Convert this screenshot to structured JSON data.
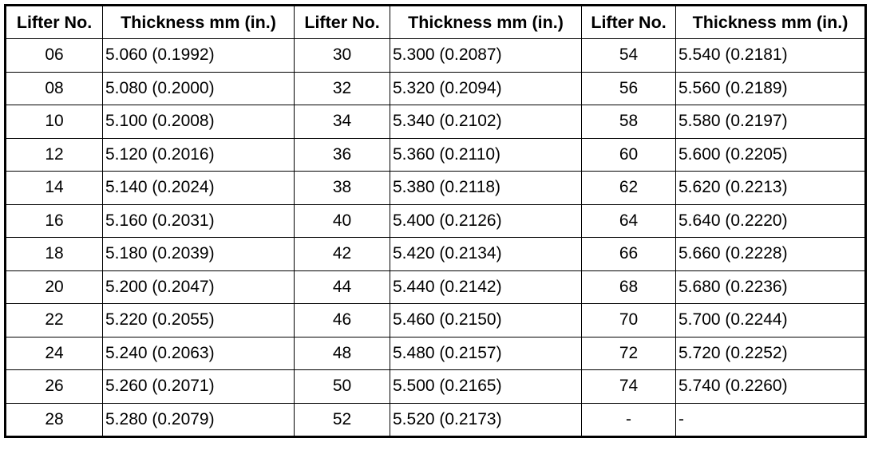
{
  "table": {
    "header": [
      "Lifter No.",
      "Thickness mm (in.)",
      "Lifter No.",
      "Thickness mm (in.)",
      "Lifter No.",
      "Thickness mm (in.)"
    ],
    "rows": [
      [
        "06",
        "5.060 (0.1992)",
        "30",
        "5.300 (0.2087)",
        "54",
        "5.540 (0.2181)"
      ],
      [
        "08",
        "5.080 (0.2000)",
        "32",
        "5.320 (0.2094)",
        "56",
        "5.560 (0.2189)"
      ],
      [
        "10",
        "5.100 (0.2008)",
        "34",
        "5.340 (0.2102)",
        "58",
        "5.580 (0.2197)"
      ],
      [
        "12",
        "5.120 (0.2016)",
        "36",
        "5.360 (0.2110)",
        "60",
        "5.600 (0.2205)"
      ],
      [
        "14",
        "5.140 (0.2024)",
        "38",
        "5.380 (0.2118)",
        "62",
        "5.620 (0.2213)"
      ],
      [
        "16",
        "5.160 (0.2031)",
        "40",
        "5.400 (0.2126)",
        "64",
        "5.640 (0.2220)"
      ],
      [
        "18",
        "5.180 (0.2039)",
        "42",
        "5.420 (0.2134)",
        "66",
        "5.660 (0.2228)"
      ],
      [
        "20",
        "5.200 (0.2047)",
        "44",
        "5.440 (0.2142)",
        "68",
        "5.680 (0.2236)"
      ],
      [
        "22",
        "5.220 (0.2055)",
        "46",
        "5.460 (0.2150)",
        "70",
        "5.700 (0.2244)"
      ],
      [
        "24",
        "5.240 (0.2063)",
        "48",
        "5.480 (0.2157)",
        "72",
        "5.720 (0.2252)"
      ],
      [
        "26",
        "5.260 (0.2071)",
        "50",
        "5.500 (0.2165)",
        "74",
        "5.740 (0.2260)"
      ],
      [
        "28",
        "5.280 (0.2079)",
        "52",
        "5.520 (0.2173)",
        "-",
        "-"
      ]
    ]
  }
}
